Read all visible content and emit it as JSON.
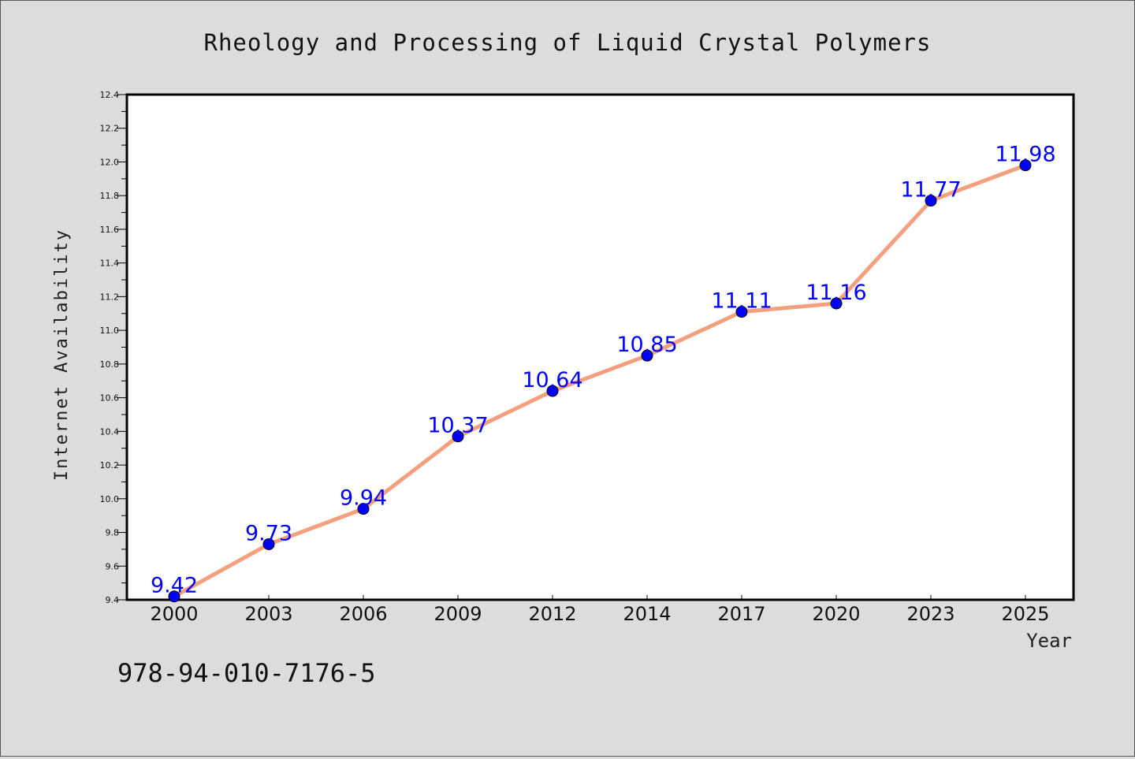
{
  "chart_data": {
    "type": "line",
    "title": "Rheology and Processing of Liquid Crystal Polymers",
    "xlabel": "Year",
    "ylabel": "Internet Availability",
    "categories": [
      "2000",
      "2003",
      "2006",
      "2009",
      "2012",
      "2014",
      "2017",
      "2020",
      "2023",
      "2025"
    ],
    "series": [
      {
        "values": [
          9.42,
          9.73,
          9.94,
          10.37,
          10.64,
          10.85,
          11.11,
          11.16,
          11.77,
          11.98
        ],
        "color": "#f4a07e",
        "marker_color": "#0000ff"
      }
    ],
    "data_labels": [
      "9.42",
      "9.73",
      "9.94",
      "10.37",
      "10.64",
      "10.85",
      "11.11",
      "11.16",
      "11.77",
      "11.98"
    ],
    "ylim": [
      9.4,
      12.4
    ],
    "yticks": [
      "9.4",
      "9.6",
      "9.8",
      "10.0",
      "10.2",
      "10.4",
      "10.6",
      "10.8",
      "11.0",
      "11.2",
      "11.4",
      "11.6",
      "11.8",
      "12.0",
      "12.2",
      "12.4"
    ],
    "grid": false,
    "legend": "none",
    "label_color": "#0000ff"
  },
  "footer": {
    "isbn": "978-94-010-7176-5"
  }
}
